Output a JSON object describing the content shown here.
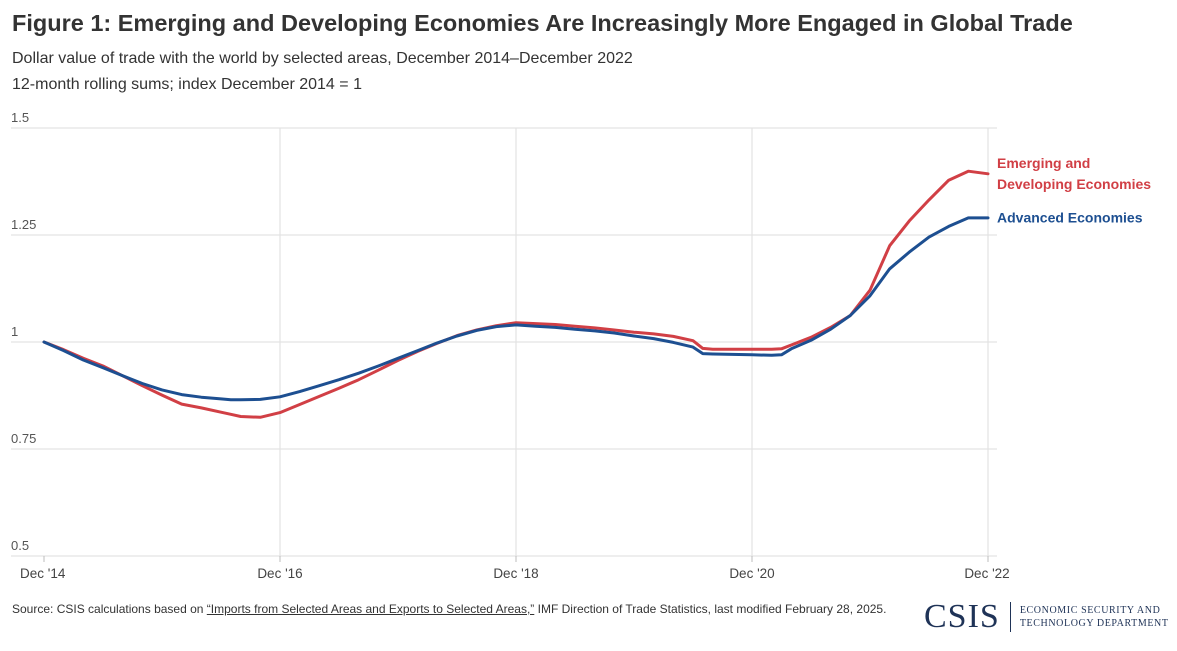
{
  "header": {
    "title": "Figure 1: Emerging and Developing Economies Are Increasingly More Engaged in Global Trade",
    "subtitle": "Dollar value of trade with the world by selected areas, December 2014–December 2022",
    "note": "12-month rolling sums; index December 2014 = 1"
  },
  "chart_data": {
    "type": "line",
    "x_ticks": [
      0,
      24,
      48,
      72,
      96
    ],
    "x_tick_labels": [
      "Dec '14",
      "Dec '16",
      "Dec '18",
      "Dec '20",
      "Dec '22"
    ],
    "y_ticks": [
      0.5,
      0.75,
      1,
      1.25,
      1.5
    ],
    "y_tick_labels": [
      "0.5",
      "0.75",
      "1",
      "1.25",
      "1.5"
    ],
    "xlim": [
      0,
      96
    ],
    "ylim": [
      0.5,
      1.5
    ],
    "grid": true,
    "series": [
      {
        "name": "Emerging and Developing Economies",
        "label_lines": [
          "Emerging and",
          "Developing Economies"
        ],
        "color": "#d13f45",
        "x": [
          0,
          2,
          4,
          6,
          8,
          10,
          12,
          14,
          16,
          18,
          19,
          20,
          22,
          24,
          26,
          28,
          30,
          32,
          34,
          36,
          38,
          40,
          42,
          44,
          46,
          48,
          50,
          52,
          54,
          56,
          58,
          60,
          62,
          64,
          66,
          67,
          68,
          70,
          72,
          74,
          75,
          76,
          78,
          80,
          82,
          84,
          86,
          88,
          90,
          92,
          94,
          96
        ],
        "values": [
          1.0,
          0.982,
          0.962,
          0.944,
          0.921,
          0.898,
          0.876,
          0.855,
          0.846,
          0.836,
          0.831,
          0.826,
          0.824,
          0.835,
          0.854,
          0.873,
          0.892,
          0.912,
          0.934,
          0.957,
          0.978,
          0.997,
          1.015,
          1.028,
          1.038,
          1.045,
          1.043,
          1.041,
          1.037,
          1.033,
          1.028,
          1.023,
          1.019,
          1.013,
          1.003,
          0.985,
          0.983,
          0.983,
          0.983,
          0.983,
          0.984,
          0.993,
          1.011,
          1.034,
          1.062,
          1.121,
          1.225,
          1.283,
          1.332,
          1.378,
          1.399,
          1.393
        ]
      },
      {
        "name": "Advanced Economies",
        "label_lines": [
          "Advanced Economies"
        ],
        "color": "#1d4f91",
        "x": [
          0,
          2,
          4,
          6,
          8,
          10,
          12,
          14,
          16,
          18,
          19,
          20,
          22,
          24,
          26,
          28,
          30,
          32,
          34,
          36,
          38,
          40,
          42,
          44,
          46,
          48,
          50,
          52,
          54,
          56,
          58,
          60,
          62,
          64,
          66,
          67,
          68,
          70,
          72,
          74,
          75,
          76,
          78,
          80,
          82,
          84,
          86,
          88,
          90,
          92,
          94,
          96
        ],
        "values": [
          1.0,
          0.98,
          0.958,
          0.94,
          0.921,
          0.903,
          0.888,
          0.877,
          0.871,
          0.867,
          0.865,
          0.865,
          0.866,
          0.872,
          0.884,
          0.898,
          0.912,
          0.927,
          0.944,
          0.962,
          0.98,
          0.998,
          1.014,
          1.027,
          1.036,
          1.04,
          1.037,
          1.034,
          1.03,
          1.026,
          1.021,
          1.014,
          1.008,
          0.999,
          0.988,
          0.973,
          0.972,
          0.971,
          0.97,
          0.969,
          0.97,
          0.984,
          1.004,
          1.03,
          1.062,
          1.108,
          1.171,
          1.21,
          1.245,
          1.27,
          1.29,
          1.29
        ]
      }
    ]
  },
  "footer": {
    "source_prefix": "Source: CSIS calculations based on ",
    "source_link": "“Imports from Selected Areas and Exports to Selected Areas,”",
    "source_suffix": " IMF Direction of Trade Statistics, last modified February 28, 2025."
  },
  "brand": {
    "mark": "CSIS",
    "dept_line1": "ECONOMIC SECURITY AND",
    "dept_line2": "TECHNOLOGY DEPARTMENT",
    "color": "#1f3357"
  }
}
